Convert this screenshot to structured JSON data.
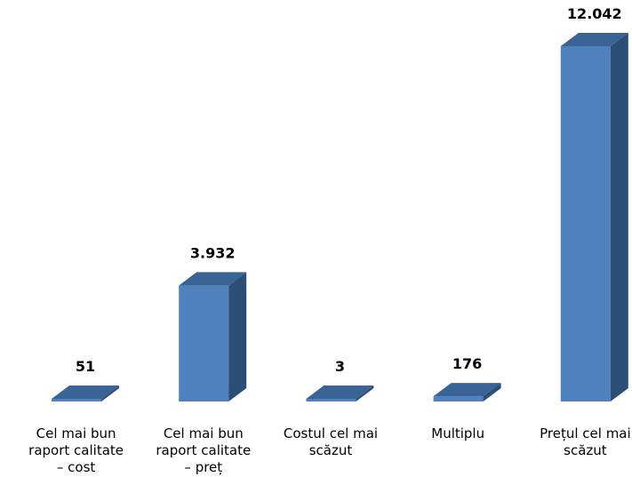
{
  "chart_data": {
    "type": "bar",
    "three_d": true,
    "categories": [
      [
        "Cel mai bun",
        "raport calitate",
        "– cost"
      ],
      [
        "Cel mai bun",
        "raport calitate",
        "– preț"
      ],
      [
        "Costul cel mai",
        "scăzut"
      ],
      [
        "Multiplu"
      ],
      [
        "Prețul cel mai",
        "scăzut"
      ]
    ],
    "values": [
      51,
      3932,
      3,
      176,
      12042
    ],
    "data_labels": [
      "51",
      "3.932",
      "3",
      "176",
      "12.042"
    ],
    "ylim": [
      0,
      12042
    ],
    "grid": false,
    "legend": "none",
    "colors": {
      "front": "#4f81bd",
      "side": "#2c4d75",
      "top": "#3a6496"
    }
  }
}
